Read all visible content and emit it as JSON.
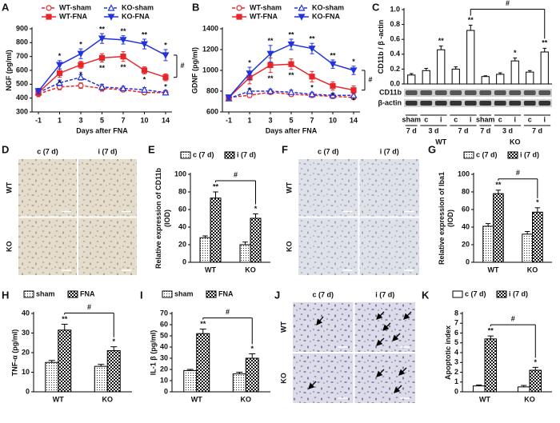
{
  "chart_data": [
    {
      "type": "line",
      "label": "A",
      "xlabel": "Days after FNA",
      "ylabel": "NGF (pg/ml)",
      "categories": [
        "-1",
        "1",
        "3",
        "5",
        "7",
        "10",
        "14"
      ],
      "ylim": [
        300,
        900
      ],
      "yticks": [
        300,
        400,
        500,
        600,
        700,
        800,
        900
      ],
      "comparison_label": "#",
      "series": [
        {
          "name": "WT-sham",
          "color": "#e8262a",
          "dashed": true,
          "marker": "circle-open",
          "values": [
            430,
            480,
            490,
            470,
            460,
            440,
            440
          ],
          "errors": [
            20,
            20,
            20,
            20,
            15,
            15,
            15
          ]
        },
        {
          "name": "KO-sham",
          "color": "#2233dd",
          "dashed": true,
          "marker": "triangle-open",
          "values": [
            440,
            510,
            550,
            480,
            470,
            460,
            440
          ],
          "errors": [
            20,
            20,
            20,
            20,
            15,
            15,
            15
          ]
        },
        {
          "name": "WT-FNA",
          "color": "#e8262a",
          "dashed": false,
          "marker": "square",
          "values": [
            440,
            580,
            640,
            690,
            700,
            600,
            550
          ],
          "errors": [
            20,
            30,
            25,
            30,
            35,
            25,
            25
          ],
          "significance": [
            null,
            "*",
            "*",
            "**",
            "**",
            "*",
            "*"
          ],
          "significance_side": "below"
        },
        {
          "name": "KO-FNA",
          "color": "#2233dd",
          "dashed": false,
          "marker": "triangle-down",
          "values": [
            450,
            640,
            720,
            830,
            820,
            790,
            710
          ],
          "errors": [
            20,
            30,
            35,
            35,
            30,
            35,
            40
          ],
          "significance": [
            null,
            "*",
            "*",
            "**",
            "**",
            "**",
            "*"
          ],
          "significance_side": "above"
        }
      ]
    },
    {
      "type": "line",
      "label": "B",
      "xlabel": "Days after FNA",
      "ylabel": "GDNF (pg/ml)",
      "categories": [
        "-1",
        "1",
        "3",
        "5",
        "7",
        "10",
        "14"
      ],
      "ylim": [
        600,
        1400
      ],
      "yticks": [
        600,
        800,
        1000,
        1200,
        1400
      ],
      "comparison_label": "#",
      "series": [
        {
          "name": "WT-sham",
          "color": "#e8262a",
          "dashed": true,
          "marker": "circle-open",
          "values": [
            740,
            760,
            790,
            770,
            760,
            750,
            740
          ],
          "errors": [
            20,
            20,
            20,
            20,
            20,
            20,
            20
          ]
        },
        {
          "name": "KO-sham",
          "color": "#2233dd",
          "dashed": true,
          "marker": "triangle-open",
          "values": [
            730,
            800,
            800,
            790,
            770,
            760,
            760
          ],
          "errors": [
            20,
            20,
            20,
            20,
            20,
            20,
            20
          ]
        },
        {
          "name": "WT-FNA",
          "color": "#e8262a",
          "dashed": false,
          "marker": "square",
          "values": [
            740,
            930,
            1050,
            1060,
            940,
            850,
            810
          ],
          "errors": [
            20,
            60,
            70,
            50,
            50,
            40,
            40
          ],
          "significance": [
            null,
            "*",
            "**",
            "**",
            "*",
            "*",
            "*"
          ],
          "significance_side": "below"
        },
        {
          "name": "KO-FNA",
          "color": "#2233dd",
          "dashed": false,
          "marker": "triangle-down",
          "values": [
            740,
            970,
            1160,
            1250,
            1210,
            1060,
            1000
          ],
          "errors": [
            20,
            60,
            80,
            50,
            50,
            40,
            40
          ],
          "significance": [
            null,
            "*",
            "**",
            "**",
            "**",
            "**",
            "*"
          ],
          "significance_side": "above"
        }
      ]
    },
    {
      "type": "bar",
      "label": "C",
      "ylabel": "CD11b / β -actin",
      "ylim": [
        0,
        1
      ],
      "yticks": [
        {
          "value": 0,
          "label": "0.0"
        },
        0.2,
        0.4,
        0.6,
        0.8,
        {
          "value": 1,
          "label": "1.0"
        }
      ],
      "comparison_label": "#",
      "pattern": "none",
      "categories": [
        "sham",
        "c",
        "i",
        "c",
        "i",
        "sham",
        "c",
        "i",
        "c",
        "i"
      ],
      "values": [
        0.12,
        0.18,
        0.46,
        0.2,
        0.72,
        0.1,
        0.13,
        0.31,
        0.16,
        0.43
      ],
      "errors": [
        0.02,
        0.03,
        0.05,
        0.03,
        0.07,
        0.01,
        0.02,
        0.04,
        0.02,
        0.05
      ],
      "significance": [
        null,
        null,
        "**",
        null,
        "**",
        null,
        null,
        "*",
        null,
        "**"
      ],
      "blot": {
        "bands": [
          "CD11b",
          "β-actin"
        ],
        "times": [
          "7 d",
          "3 d",
          "7 d",
          "7 d",
          "3 d",
          "7 d"
        ],
        "groups": [
          "WT",
          "KO"
        ]
      }
    },
    {
      "type": "image",
      "label": "D",
      "columns": [
        "c (7 d)",
        "i (7 d)"
      ],
      "rows": [
        "WT",
        "KO"
      ],
      "color": "#e4dccc",
      "speckle_color": "#a38f6a"
    },
    {
      "type": "bar",
      "label": "E",
      "ylabel": [
        "Relative expression of CD11b",
        "(IOD)"
      ],
      "ylim": [
        0,
        100
      ],
      "yticks": [
        0,
        20,
        40,
        60,
        80,
        100
      ],
      "comparison_label": "#",
      "categories": [
        "WT",
        "KO"
      ],
      "series": [
        {
          "name": "c (7 d)",
          "pattern": "dots",
          "values": [
            28,
            20
          ],
          "errors": [
            2,
            3
          ]
        },
        {
          "name": "i (7 d)",
          "pattern": "check",
          "values": [
            73,
            50
          ],
          "errors": [
            7,
            5
          ],
          "significance": [
            "**",
            "*"
          ]
        }
      ]
    },
    {
      "type": "image",
      "label": "F",
      "columns": [
        "c (7 d)",
        "i (7 d)"
      ],
      "rows": [
        "WT",
        "KO"
      ],
      "color": "#dfe1e8",
      "speckle_color": "#8d8fae"
    },
    {
      "type": "bar",
      "label": "G",
      "ylabel": [
        "Relative expression of Iba1",
        "(IOD)"
      ],
      "ylim": [
        0,
        100
      ],
      "yticks": [
        0,
        20,
        40,
        60,
        80,
        100
      ],
      "comparison_label": "#",
      "categories": [
        "WT",
        "KO"
      ],
      "series": [
        {
          "name": "c (7 d)",
          "pattern": "dots",
          "values": [
            41,
            32
          ],
          "errors": [
            3,
            3
          ]
        },
        {
          "name": "i (7 d)",
          "pattern": "check",
          "values": [
            78,
            57
          ],
          "errors": [
            4,
            5
          ],
          "significance": [
            "**",
            "*"
          ]
        }
      ]
    },
    {
      "type": "bar",
      "label": "H",
      "ylabel": "TNF-α (pg/ml)",
      "ylim": [
        0,
        40
      ],
      "yticks": [
        0,
        10,
        20,
        30,
        40
      ],
      "comparison_label": "#",
      "categories": [
        "WT",
        "KO"
      ],
      "series": [
        {
          "name": "sham",
          "pattern": "dots",
          "values": [
            15,
            13
          ],
          "errors": [
            1,
            1
          ]
        },
        {
          "name": "FNA",
          "pattern": "check",
          "values": [
            31.5,
            21
          ],
          "errors": [
            3,
            2
          ],
          "significance": [
            "**",
            "*"
          ]
        }
      ]
    },
    {
      "type": "bar",
      "label": "I",
      "ylabel": "IL-1 β (pg/ml)",
      "ylim": [
        0,
        70
      ],
      "yticks": [
        0,
        10,
        20,
        30,
        40,
        50,
        60,
        70
      ],
      "comparison_label": "#",
      "categories": [
        "WT",
        "KO"
      ],
      "series": [
        {
          "name": "sham",
          "pattern": "dots",
          "values": [
            19,
            16
          ],
          "errors": [
            1,
            1.5
          ]
        },
        {
          "name": "FNA",
          "pattern": "check",
          "values": [
            52,
            30
          ],
          "errors": [
            4,
            4
          ],
          "significance": [
            "**",
            "*"
          ]
        }
      ]
    },
    {
      "type": "image",
      "label": "J",
      "columns": [
        "c (7 d)",
        "i (7 d)"
      ],
      "rows": [
        "WT",
        "KO"
      ],
      "color": "#dcdbe8",
      "speckle_color": "#5e5292"
    },
    {
      "type": "bar",
      "label": "K",
      "ylabel": "Apoptotic index",
      "ylim": [
        0,
        8
      ],
      "yticks": [
        0,
        1,
        2,
        3,
        4,
        5,
        6,
        7,
        8
      ],
      "comparison_label": "#",
      "categories": [
        "WT",
        "KO"
      ],
      "series": [
        {
          "name": "c (7 d)",
          "pattern": "none",
          "values": [
            0.6,
            0.5
          ],
          "errors": [
            0.1,
            0.15
          ]
        },
        {
          "name": "i (7 d)",
          "pattern": "check",
          "values": [
            5.4,
            2.2
          ],
          "errors": [
            0.3,
            0.3
          ],
          "significance": [
            "**",
            "*"
          ]
        }
      ]
    }
  ]
}
